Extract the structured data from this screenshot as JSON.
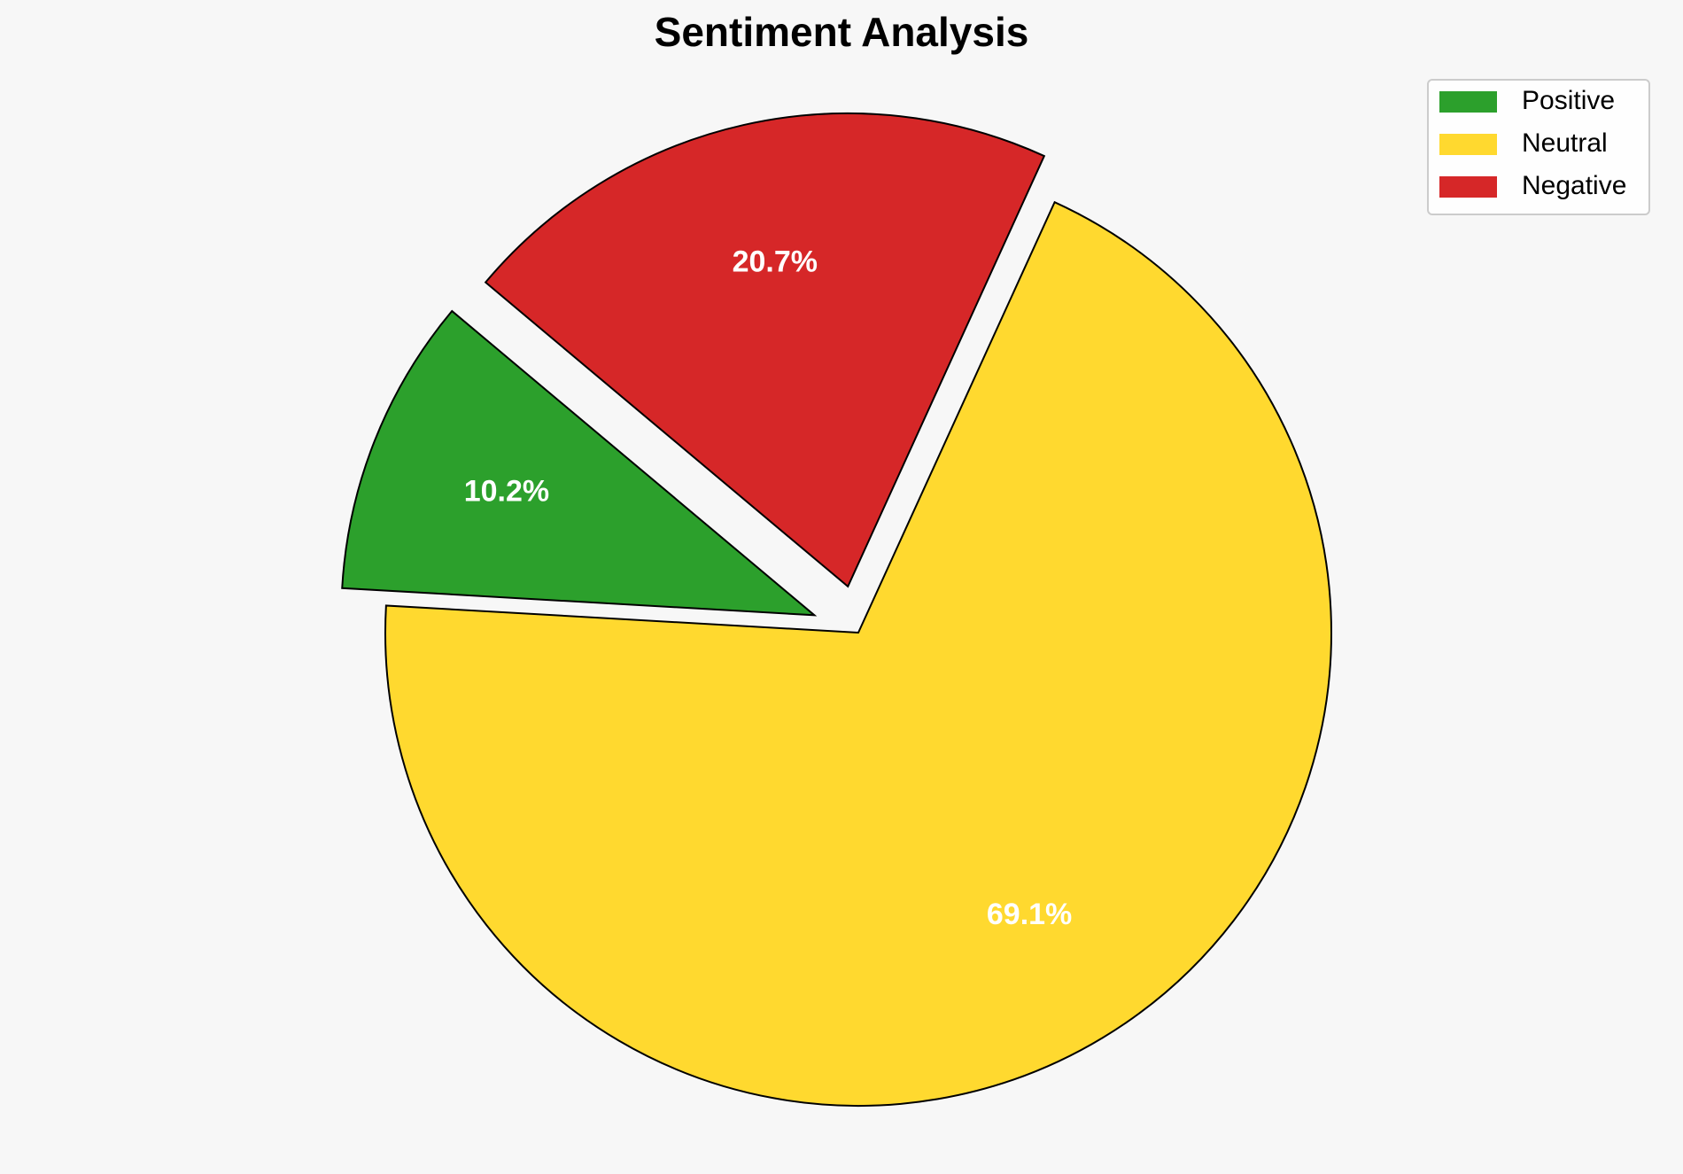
{
  "chart_data": {
    "type": "pie",
    "title": "Sentiment Analysis",
    "categories": [
      "Positive",
      "Neutral",
      "Negative"
    ],
    "values": [
      10.2,
      69.1,
      20.7
    ],
    "value_labels": [
      "10.2%",
      "69.1%",
      "20.7%"
    ],
    "colors": [
      "#2ca02c",
      "#ffd92f",
      "#d62728"
    ],
    "explode": [
      0.1,
      0,
      0.1
    ],
    "start_angle": 140,
    "legend": "upper right"
  }
}
